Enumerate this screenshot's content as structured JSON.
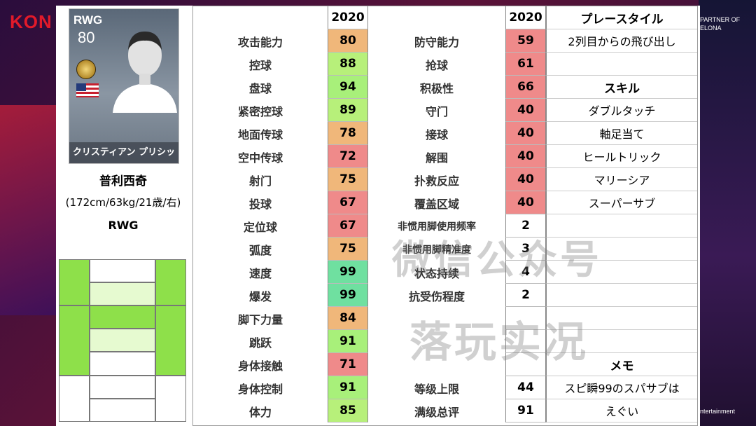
{
  "background": {
    "brand_left": "KON",
    "brand_right_lines": [
      "PARTNER OF",
      "ELONA"
    ],
    "brand_bottom": "ntertainment"
  },
  "player_card": {
    "position": "RWG",
    "overall": "80",
    "name_jp": "クリスティアン プリシッチ",
    "flag": "usa-flag"
  },
  "player": {
    "name": "普利西奇",
    "info": "(172cm/63kg/21歳/右)",
    "position": "RWG"
  },
  "table": {
    "header_left": "2020",
    "header_right": "2020",
    "header_style": "プレースタイル",
    "left_stats": [
      {
        "label": "攻击能力",
        "value": "80",
        "color": "#f0b77a"
      },
      {
        "label": "控球",
        "value": "88",
        "color": "#b7f07a"
      },
      {
        "label": "盘球",
        "value": "94",
        "color": "#a8f07a"
      },
      {
        "label": "紧密控球",
        "value": "89",
        "color": "#b7f07a"
      },
      {
        "label": "地面传球",
        "value": "78",
        "color": "#f0b77a"
      },
      {
        "label": "空中传球",
        "value": "72",
        "color": "#ef8a8a"
      },
      {
        "label": "射门",
        "value": "75",
        "color": "#f0b77a"
      },
      {
        "label": "投球",
        "value": "67",
        "color": "#ef8a8a"
      },
      {
        "label": "定位球",
        "value": "67",
        "color": "#ef8a8a"
      },
      {
        "label": "弧度",
        "value": "75",
        "color": "#f0b77a"
      },
      {
        "label": "速度",
        "value": "99",
        "color": "#6fe0a0"
      },
      {
        "label": "爆发",
        "value": "99",
        "color": "#6fe0a0"
      },
      {
        "label": "脚下力量",
        "value": "84",
        "color": "#f0b77a"
      },
      {
        "label": "跳跃",
        "value": "91",
        "color": "#a8f07a"
      },
      {
        "label": "身体接触",
        "value": "71",
        "color": "#ef8a8a"
      },
      {
        "label": "身体控制",
        "value": "91",
        "color": "#a8f07a"
      },
      {
        "label": "体力",
        "value": "85",
        "color": "#b7f07a"
      }
    ],
    "right_stats": [
      {
        "label": "防守能力",
        "value": "59",
        "color": "#ef8a8a"
      },
      {
        "label": "抢球",
        "value": "61",
        "color": "#ef8a8a"
      },
      {
        "label": "积极性",
        "value": "66",
        "color": "#ef8a8a"
      },
      {
        "label": "守门",
        "value": "40",
        "color": "#ef8a8a"
      },
      {
        "label": "接球",
        "value": "40",
        "color": "#ef8a8a"
      },
      {
        "label": "解围",
        "value": "40",
        "color": "#ef8a8a"
      },
      {
        "label": "扑救反应",
        "value": "40",
        "color": "#ef8a8a"
      },
      {
        "label": "覆盖区域",
        "value": "40",
        "color": "#ef8a8a"
      },
      {
        "label": "非惯用脚使用频率",
        "value": "2",
        "color": "#ffffff"
      },
      {
        "label": "非惯用脚精准度",
        "value": "3",
        "color": "#ffffff"
      },
      {
        "label": "状态持续",
        "value": "4",
        "color": "#ffffff"
      },
      {
        "label": "抗受伤程度",
        "value": "2",
        "color": "#ffffff"
      },
      {
        "label": "",
        "value": "",
        "color": "#ffffff"
      },
      {
        "label": "",
        "value": "",
        "color": "#ffffff"
      },
      {
        "label": "",
        "value": "",
        "color": "#ffffff"
      },
      {
        "label": "等级上限",
        "value": "44",
        "color": "#ffffff"
      },
      {
        "label": "满级总评",
        "value": "91",
        "color": "#ffffff"
      }
    ],
    "right_col": [
      {
        "text": "2列目からの飛び出し",
        "bold": false
      },
      {
        "text": "",
        "bold": false
      },
      {
        "text": "スキル",
        "bold": true
      },
      {
        "text": "ダブルタッチ",
        "bold": false
      },
      {
        "text": "軸足当て",
        "bold": false
      },
      {
        "text": "ヒールトリック",
        "bold": false
      },
      {
        "text": "マリーシア",
        "bold": false
      },
      {
        "text": "スーパーサブ",
        "bold": false
      },
      {
        "text": "",
        "bold": false
      },
      {
        "text": "",
        "bold": false
      },
      {
        "text": "",
        "bold": false
      },
      {
        "text": "",
        "bold": false
      },
      {
        "text": "",
        "bold": false
      },
      {
        "text": "",
        "bold": false
      },
      {
        "text": "メモ",
        "bold": true
      },
      {
        "text": "スピ瞬99のスパサブは",
        "bold": false
      },
      {
        "text": "えぐい",
        "bold": false
      }
    ]
  },
  "watermark": {
    "line1": "微信公众号",
    "line2": "落玩实况"
  }
}
